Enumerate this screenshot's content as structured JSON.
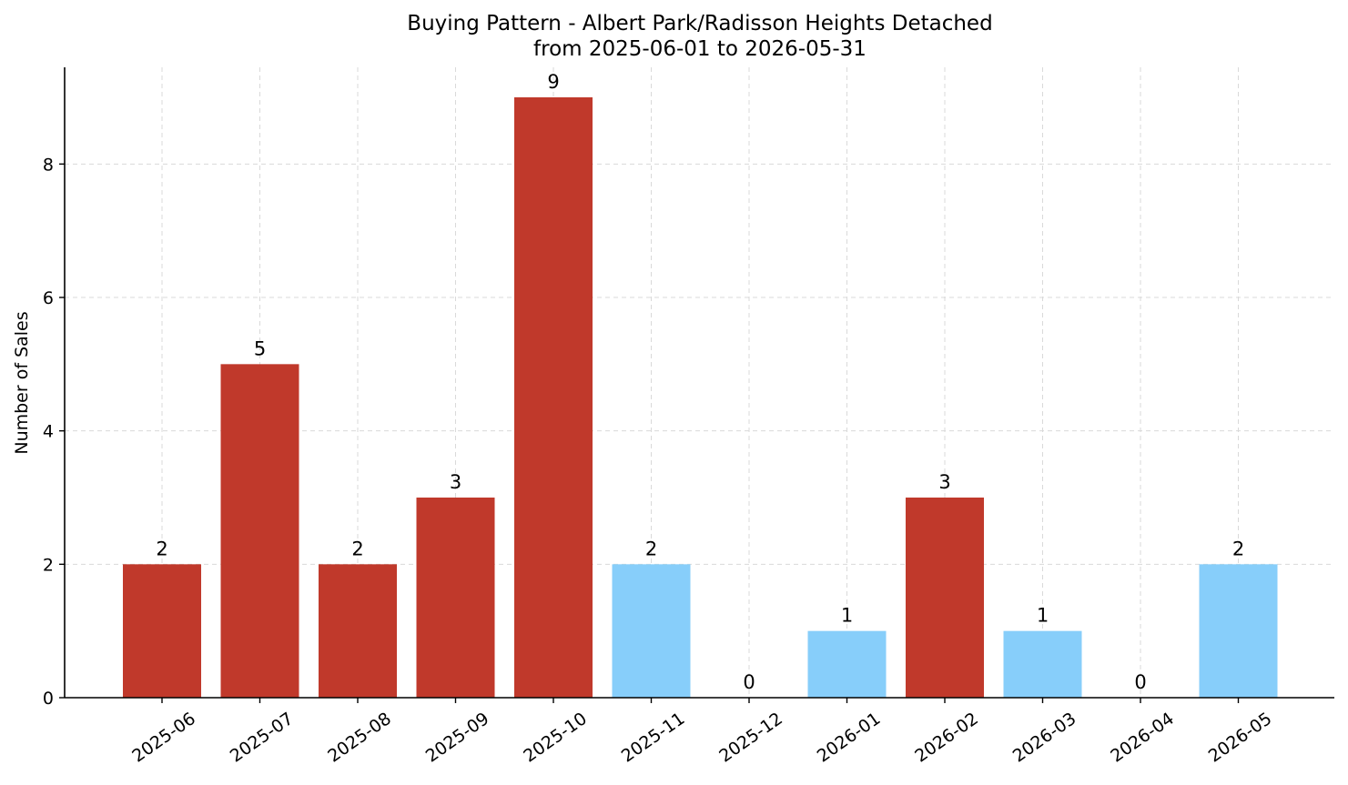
{
  "chart_data": {
    "type": "bar",
    "title": "Buying Pattern - Albert Park/Radisson Heights Detached",
    "subtitle": "from 2025-06-01 to 2026-05-31",
    "xlabel": "",
    "ylabel": "Number of Sales",
    "categories": [
      "2025-06",
      "2025-07",
      "2025-08",
      "2025-09",
      "2025-10",
      "2025-11",
      "2025-12",
      "2026-01",
      "2026-02",
      "2026-03",
      "2026-04",
      "2026-05"
    ],
    "values": [
      2,
      5,
      2,
      3,
      9,
      2,
      0,
      1,
      3,
      1,
      0,
      2
    ],
    "bar_colors": [
      "#c0392b",
      "#c0392b",
      "#c0392b",
      "#c0392b",
      "#c0392b",
      "#87cefa",
      "#87cefa",
      "#87cefa",
      "#c0392b",
      "#87cefa",
      "#87cefa",
      "#87cefa"
    ],
    "ylim": [
      0,
      9.45
    ],
    "yticks": [
      0,
      2,
      4,
      6,
      8
    ],
    "grid": true
  }
}
